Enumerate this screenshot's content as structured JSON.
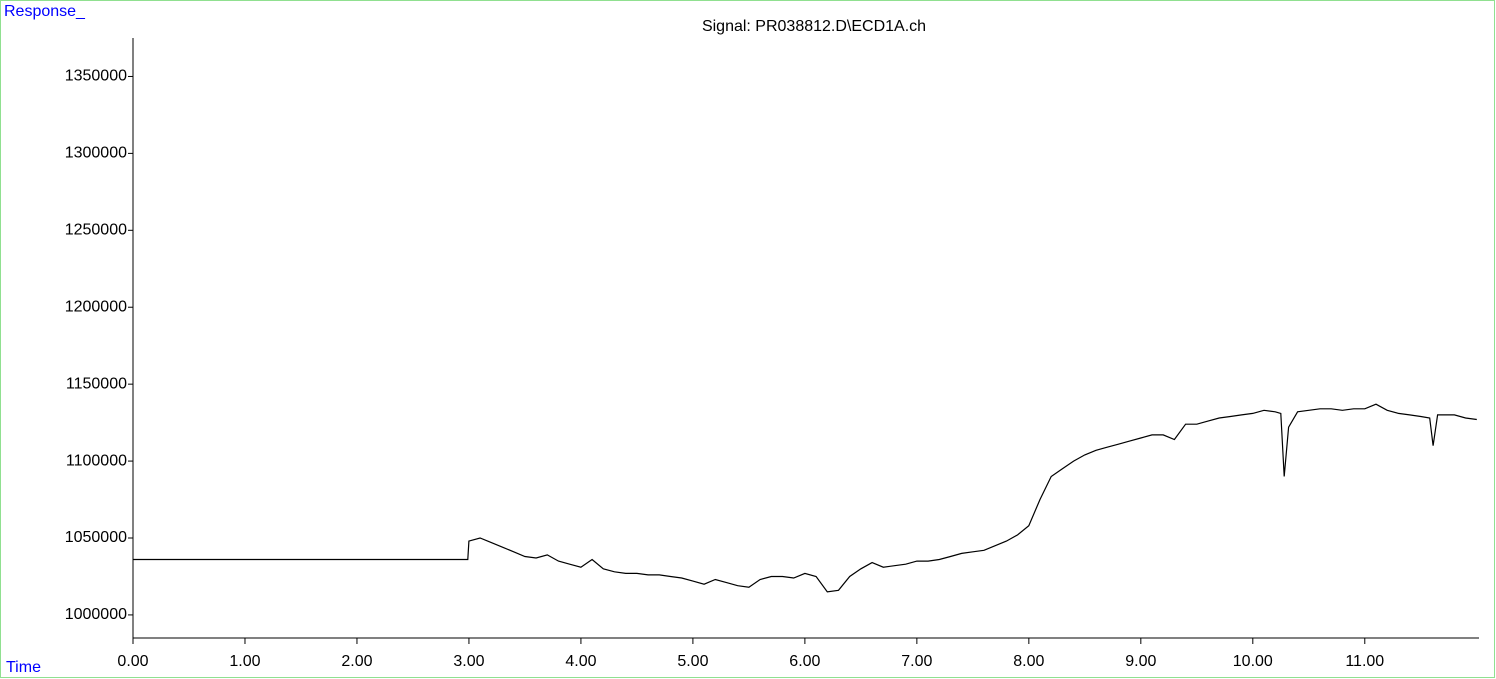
{
  "chart_data": {
    "type": "line",
    "title": "Signal: PR038812.D\\ECD1A.ch",
    "y_label": "Response_",
    "x_label": "Time",
    "x": [
      0,
      2.99,
      3.0,
      3.1,
      3.2,
      3.3,
      3.4,
      3.5,
      3.6,
      3.7,
      3.8,
      3.9,
      4.0,
      4.1,
      4.2,
      4.3,
      4.4,
      4.5,
      4.6,
      4.7,
      4.8,
      4.9,
      5.0,
      5.1,
      5.2,
      5.3,
      5.4,
      5.5,
      5.6,
      5.7,
      5.8,
      5.9,
      6.0,
      6.1,
      6.2,
      6.3,
      6.4,
      6.5,
      6.6,
      6.7,
      6.8,
      6.9,
      7.0,
      7.1,
      7.2,
      7.3,
      7.4,
      7.5,
      7.6,
      7.7,
      7.8,
      7.9,
      8.0,
      8.1,
      8.2,
      8.3,
      8.4,
      8.5,
      8.6,
      8.7,
      8.8,
      8.9,
      9.0,
      9.1,
      9.2,
      9.3,
      9.4,
      9.5,
      9.6,
      9.7,
      9.8,
      9.9,
      10.0,
      10.1,
      10.2,
      10.25,
      10.28,
      10.32,
      10.4,
      10.5,
      10.6,
      10.7,
      10.8,
      10.9,
      11.0,
      11.1,
      11.2,
      11.3,
      11.4,
      11.5,
      11.58,
      11.61,
      11.65,
      11.7,
      11.8,
      11.9,
      12.0
    ],
    "series": [
      {
        "color": "#000000",
        "values": [
          1036000,
          1036000,
          1048000,
          1050000,
          1047000,
          1044000,
          1041000,
          1038000,
          1037000,
          1039000,
          1035000,
          1033000,
          1031000,
          1036000,
          1030000,
          1028000,
          1027000,
          1027000,
          1026000,
          1026000,
          1025000,
          1024000,
          1022000,
          1020000,
          1023000,
          1021000,
          1019000,
          1018000,
          1023000,
          1025000,
          1025000,
          1024000,
          1027000,
          1025000,
          1015000,
          1016000,
          1025000,
          1030000,
          1034000,
          1031000,
          1032000,
          1033000,
          1035000,
          1035000,
          1036000,
          1038000,
          1040000,
          1041000,
          1042000,
          1045000,
          1048000,
          1052000,
          1058000,
          1075000,
          1090000,
          1095000,
          1100000,
          1104000,
          1107000,
          1109000,
          1111000,
          1113000,
          1115000,
          1117000,
          1117000,
          1114000,
          1124000,
          1124000,
          1126000,
          1128000,
          1129000,
          1130000,
          1131000,
          1133000,
          1132000,
          1131000,
          1090000,
          1122000,
          1132000,
          1133000,
          1134000,
          1134000,
          1133000,
          1134000,
          1134000,
          1137000,
          1133000,
          1131000,
          1130000,
          1129000,
          1128000,
          1110000,
          1130000,
          1130000,
          1130000,
          1128000,
          1127000
        ]
      }
    ],
    "xlim": [
      0,
      12.02
    ],
    "ylim": [
      985000,
      1375000
    ],
    "xticks": [
      {
        "value": 0,
        "label": "0.00"
      },
      {
        "value": 1,
        "label": "1.00"
      },
      {
        "value": 2,
        "label": "2.00"
      },
      {
        "value": 3,
        "label": "3.00"
      },
      {
        "value": 4,
        "label": "4.00"
      },
      {
        "value": 5,
        "label": "5.00"
      },
      {
        "value": 6,
        "label": "6.00"
      },
      {
        "value": 7,
        "label": "7.00"
      },
      {
        "value": 8,
        "label": "8.00"
      },
      {
        "value": 9,
        "label": "9.00"
      },
      {
        "value": 10,
        "label": "10.00"
      },
      {
        "value": 11,
        "label": "11.00"
      }
    ],
    "yticks": [
      1000000,
      1050000,
      1100000,
      1150000,
      1200000,
      1250000,
      1300000,
      1350000
    ]
  }
}
